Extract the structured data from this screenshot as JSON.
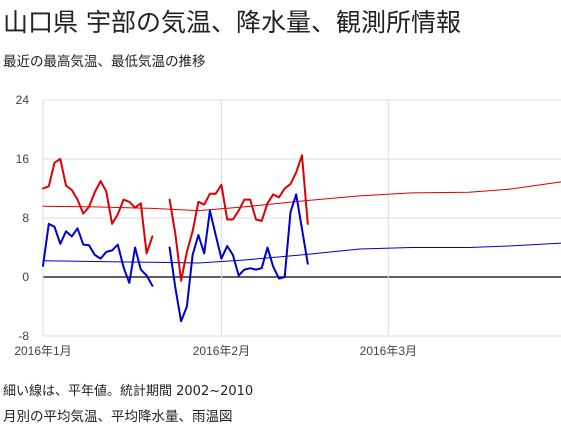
{
  "header": {
    "title": "山口県 宇部の気温、降水量、観測所情報",
    "subtitle": "最近の最高気温、最低気温の推移"
  },
  "footer": {
    "note": "細い線は、平年値。統計期間 2002~2010",
    "link": "月別の平均気温、平均降水量、雨温図"
  },
  "colors": {
    "max_temp": "#dd0000",
    "min_temp": "#0000cc",
    "grid": "#dddddd",
    "zero_line": "#000000"
  },
  "chart_data": {
    "type": "line",
    "x_start": "2016-01-01",
    "x_end": "2016-03-31",
    "ylim": [
      -8,
      24
    ],
    "yticks": [
      -8,
      0,
      8,
      16,
      24
    ],
    "ytick_labels": [
      "-8",
      "0",
      "8",
      "16",
      "24"
    ],
    "xticks": [
      {
        "date": "2016-01-01",
        "label": "2016年1月"
      },
      {
        "date": "2016-02-01",
        "label": "2016年2月"
      },
      {
        "date": "2016-03-01",
        "label": "2016年3月"
      }
    ],
    "series": [
      {
        "key": "max",
        "values": [
          {
            "date": "2016-01-01",
            "value": 12.0
          },
          {
            "date": "2016-01-02",
            "value": 12.3
          },
          {
            "date": "2016-01-03",
            "value": 15.5
          },
          {
            "date": "2016-01-04",
            "value": 16.0
          },
          {
            "date": "2016-01-05",
            "value": 12.4
          },
          {
            "date": "2016-01-06",
            "value": 11.8
          },
          {
            "date": "2016-01-07",
            "value": 10.5
          },
          {
            "date": "2016-01-08",
            "value": 8.6
          },
          {
            "date": "2016-01-09",
            "value": 9.5
          },
          {
            "date": "2016-01-10",
            "value": 11.5
          },
          {
            "date": "2016-01-11",
            "value": 13.0
          },
          {
            "date": "2016-01-12",
            "value": 11.6
          },
          {
            "date": "2016-01-13",
            "value": 7.2
          },
          {
            "date": "2016-01-14",
            "value": 8.5
          },
          {
            "date": "2016-01-15",
            "value": 10.5
          },
          {
            "date": "2016-01-16",
            "value": 10.2
          },
          {
            "date": "2016-01-17",
            "value": 9.4
          },
          {
            "date": "2016-01-18",
            "value": 10.0
          },
          {
            "date": "2016-01-19",
            "value": 3.2
          },
          {
            "date": "2016-01-20",
            "value": 5.5
          },
          {
            "date": "2016-01-21",
            "value": null
          },
          {
            "date": "2016-01-22",
            "value": null
          },
          {
            "date": "2016-01-23",
            "value": 10.5
          },
          {
            "date": "2016-01-24",
            "value": 5.8
          },
          {
            "date": "2016-01-25",
            "value": -0.5
          },
          {
            "date": "2016-01-26",
            "value": 3.4
          },
          {
            "date": "2016-01-27",
            "value": 6.2
          },
          {
            "date": "2016-01-28",
            "value": 10.2
          },
          {
            "date": "2016-01-29",
            "value": 9.8
          },
          {
            "date": "2016-01-30",
            "value": 11.3
          },
          {
            "date": "2016-01-31",
            "value": 11.3
          },
          {
            "date": "2016-02-01",
            "value": 12.5
          },
          {
            "date": "2016-02-02",
            "value": 7.8
          },
          {
            "date": "2016-02-03",
            "value": 7.8
          },
          {
            "date": "2016-02-04",
            "value": 9.0
          },
          {
            "date": "2016-02-05",
            "value": 10.5
          },
          {
            "date": "2016-02-06",
            "value": 10.5
          },
          {
            "date": "2016-02-07",
            "value": 7.8
          },
          {
            "date": "2016-02-08",
            "value": 7.6
          },
          {
            "date": "2016-02-09",
            "value": 10.0
          },
          {
            "date": "2016-02-10",
            "value": 11.2
          },
          {
            "date": "2016-02-11",
            "value": 10.8
          },
          {
            "date": "2016-02-12",
            "value": 12.0
          },
          {
            "date": "2016-02-13",
            "value": 12.6
          },
          {
            "date": "2016-02-14",
            "value": 14.2
          },
          {
            "date": "2016-02-15",
            "value": 16.5
          },
          {
            "date": "2016-02-16",
            "value": 7.2
          }
        ]
      },
      {
        "key": "min",
        "values": [
          {
            "date": "2016-01-01",
            "value": 1.5
          },
          {
            "date": "2016-01-02",
            "value": 7.2
          },
          {
            "date": "2016-01-03",
            "value": 6.8
          },
          {
            "date": "2016-01-04",
            "value": 4.5
          },
          {
            "date": "2016-01-05",
            "value": 6.2
          },
          {
            "date": "2016-01-06",
            "value": 5.5
          },
          {
            "date": "2016-01-07",
            "value": 6.6
          },
          {
            "date": "2016-01-08",
            "value": 4.4
          },
          {
            "date": "2016-01-09",
            "value": 4.3
          },
          {
            "date": "2016-01-10",
            "value": 3.0
          },
          {
            "date": "2016-01-11",
            "value": 2.5
          },
          {
            "date": "2016-01-12",
            "value": 3.4
          },
          {
            "date": "2016-01-13",
            "value": 3.6
          },
          {
            "date": "2016-01-14",
            "value": 4.4
          },
          {
            "date": "2016-01-15",
            "value": 1.3
          },
          {
            "date": "2016-01-16",
            "value": -0.8
          },
          {
            "date": "2016-01-17",
            "value": 4.0
          },
          {
            "date": "2016-01-18",
            "value": 1.0
          },
          {
            "date": "2016-01-19",
            "value": 0.2
          },
          {
            "date": "2016-01-20",
            "value": -1.2
          },
          {
            "date": "2016-01-21",
            "value": null
          },
          {
            "date": "2016-01-22",
            "value": null
          },
          {
            "date": "2016-01-23",
            "value": 4.0
          },
          {
            "date": "2016-01-24",
            "value": -1.5
          },
          {
            "date": "2016-01-25",
            "value": -6.0
          },
          {
            "date": "2016-01-26",
            "value": -4.0
          },
          {
            "date": "2016-01-27",
            "value": 3.0
          },
          {
            "date": "2016-01-28",
            "value": 5.7
          },
          {
            "date": "2016-01-29",
            "value": 3.2
          },
          {
            "date": "2016-01-30",
            "value": 9.0
          },
          {
            "date": "2016-01-31",
            "value": 5.7
          },
          {
            "date": "2016-02-01",
            "value": 2.5
          },
          {
            "date": "2016-02-02",
            "value": 4.2
          },
          {
            "date": "2016-02-03",
            "value": 3.0
          },
          {
            "date": "2016-02-04",
            "value": 0.2
          },
          {
            "date": "2016-02-05",
            "value": 1.0
          },
          {
            "date": "2016-02-06",
            "value": 1.2
          },
          {
            "date": "2016-02-07",
            "value": 1.0
          },
          {
            "date": "2016-02-08",
            "value": 1.2
          },
          {
            "date": "2016-02-09",
            "value": 4.0
          },
          {
            "date": "2016-02-10",
            "value": 1.4
          },
          {
            "date": "2016-02-11",
            "value": -0.2
          },
          {
            "date": "2016-02-12",
            "value": 0.0
          },
          {
            "date": "2016-02-13",
            "value": 8.8
          },
          {
            "date": "2016-02-14",
            "value": 11.2
          },
          {
            "date": "2016-02-15",
            "value": 6.5
          },
          {
            "date": "2016-02-16",
            "value": 1.8
          }
        ]
      },
      {
        "key": "normal_max",
        "style": "thin",
        "values": [
          {
            "date": "2016-01-01",
            "value": 9.6
          },
          {
            "date": "2016-01-10",
            "value": 9.5
          },
          {
            "date": "2016-01-20",
            "value": 9.3
          },
          {
            "date": "2016-01-28",
            "value": 9.0
          },
          {
            "date": "2016-02-05",
            "value": 9.5
          },
          {
            "date": "2016-02-15",
            "value": 10.3
          },
          {
            "date": "2016-02-25",
            "value": 11.0
          },
          {
            "date": "2016-03-05",
            "value": 11.4
          },
          {
            "date": "2016-03-15",
            "value": 11.5
          },
          {
            "date": "2016-03-22",
            "value": 11.9
          },
          {
            "date": "2016-03-31",
            "value": 12.9
          }
        ]
      },
      {
        "key": "normal_min",
        "style": "thin",
        "values": [
          {
            "date": "2016-01-01",
            "value": 2.2
          },
          {
            "date": "2016-01-10",
            "value": 2.1
          },
          {
            "date": "2016-01-20",
            "value": 2.0
          },
          {
            "date": "2016-01-28",
            "value": 1.9
          },
          {
            "date": "2016-02-05",
            "value": 2.3
          },
          {
            "date": "2016-02-15",
            "value": 3.0
          },
          {
            "date": "2016-02-25",
            "value": 3.8
          },
          {
            "date": "2016-03-05",
            "value": 4.0
          },
          {
            "date": "2016-03-15",
            "value": 4.0
          },
          {
            "date": "2016-03-22",
            "value": 4.2
          },
          {
            "date": "2016-03-31",
            "value": 4.6
          }
        ]
      }
    ]
  }
}
